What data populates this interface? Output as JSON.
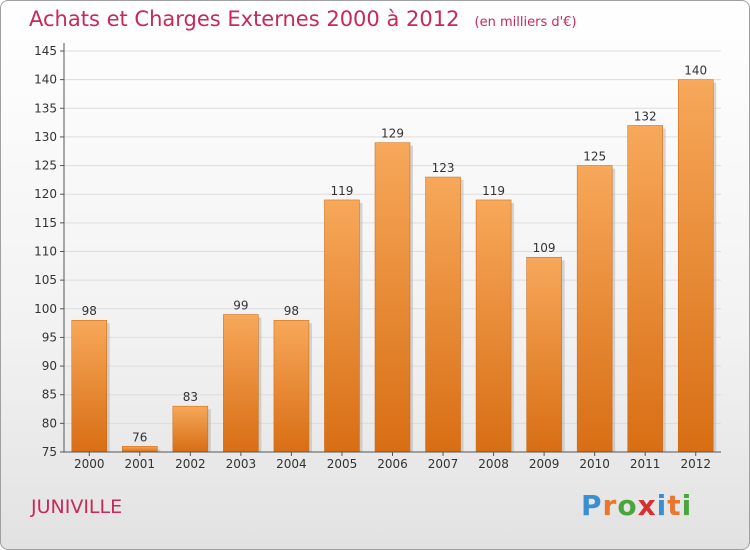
{
  "header": {
    "title": "Achats et Charges Externes 2000 à 2012",
    "unit": "(en milliers d'€)"
  },
  "footer": {
    "town": "JUNIVILLE",
    "logo_letters": [
      "P",
      "r",
      "o",
      "x",
      "i",
      "t",
      "i"
    ],
    "logo_colors": [
      "#3a8fd0",
      "#e8762d",
      "#4aa63c",
      "#d92e2e",
      "#3a8fd0",
      "#e8762d",
      "#4aa63c"
    ]
  },
  "colors": {
    "title": "#c8285a",
    "bar_top": "#f7a85a",
    "bar_bottom": "#d86e14",
    "grid": "#dddddd",
    "axis": "#555555"
  },
  "chart_data": {
    "type": "bar",
    "categories": [
      "2000",
      "2001",
      "2002",
      "2003",
      "2004",
      "2005",
      "2006",
      "2007",
      "2008",
      "2009",
      "2010",
      "2011",
      "2012"
    ],
    "values": [
      98,
      76,
      83,
      99,
      98,
      119,
      129,
      123,
      119,
      109,
      125,
      132,
      140
    ],
    "title": "Achats et Charges Externes 2000 à 2012",
    "xlabel": "",
    "ylabel": "",
    "ylim": [
      75,
      145
    ],
    "yticks": [
      75,
      80,
      85,
      90,
      95,
      100,
      105,
      110,
      115,
      120,
      125,
      130,
      135,
      140,
      145
    ],
    "grid": true
  }
}
